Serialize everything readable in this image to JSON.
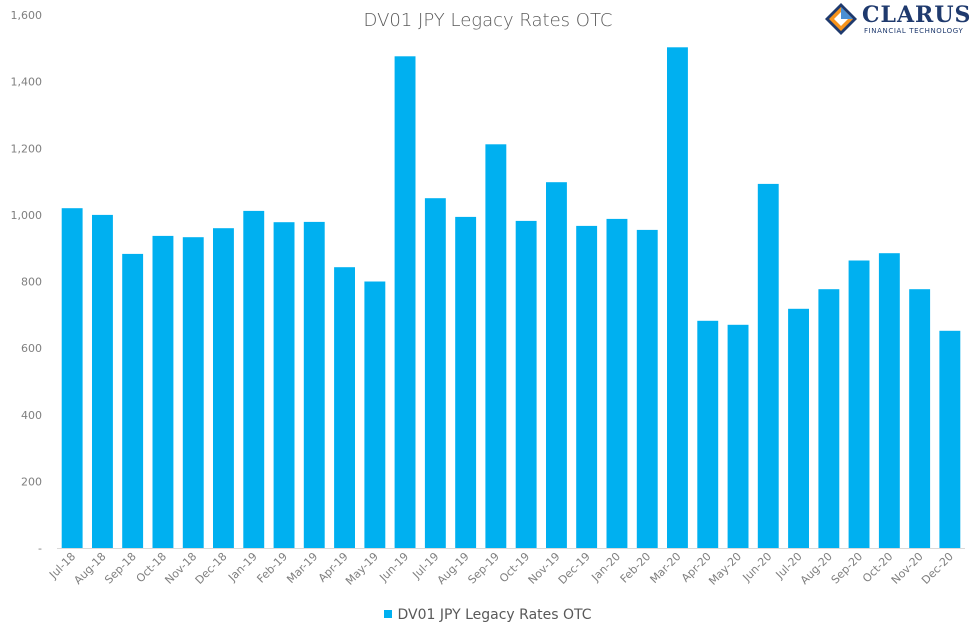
{
  "chart_data": {
    "type": "bar",
    "title": "DV01 JPY Legacy Rates OTC",
    "categories": [
      "Jul-18",
      "Aug-18",
      "Sep-18",
      "Oct-18",
      "Nov-18",
      "Dec-18",
      "Jan-19",
      "Feb-19",
      "Mar-19",
      "Apr-19",
      "May-19",
      "Jun-19",
      "Jul-19",
      "Aug-19",
      "Sep-19",
      "Oct-19",
      "Nov-19",
      "Dec-19",
      "Jan-20",
      "Feb-20",
      "Mar-20",
      "Apr-20",
      "May-20",
      "Jun-20",
      "Jul-20",
      "Aug-20",
      "Sep-20",
      "Oct-20",
      "Nov-20",
      "Dec-20"
    ],
    "series": [
      {
        "name": "DV01 JPY Legacy Rates OTC",
        "color": "#00b0f0",
        "values": [
          1020,
          1000,
          883,
          937,
          933,
          960,
          1012,
          978,
          979,
          843,
          800,
          1476,
          1050,
          994,
          1212,
          982,
          1098,
          967,
          988,
          955,
          1503,
          682,
          670,
          1093,
          718,
          777,
          863,
          885,
          777,
          652
        ]
      }
    ],
    "ylim": [
      0,
      1600
    ],
    "yticks": [
      "-",
      "200",
      "400",
      "600",
      "800",
      "1,000",
      "1,200",
      "1,400",
      "1,600"
    ],
    "xlabel": "",
    "ylabel": "",
    "grid": false,
    "legend_position": "bottom"
  },
  "logo": {
    "name": "CLARUS",
    "tagline": "FINANCIAL TECHNOLOGY"
  }
}
